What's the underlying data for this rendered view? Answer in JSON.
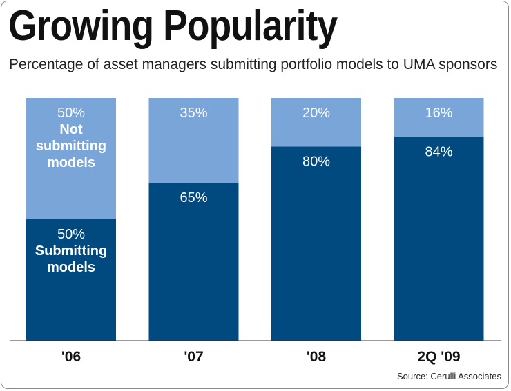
{
  "title": "Growing Popularity",
  "subtitle": "Percentage of asset managers submitting portfolio models to UMA sponsors",
  "source": "Source: Cerulli Associates",
  "colors": {
    "submitting": "#004a80",
    "not_submitting": "#7aa5d8",
    "axis": "#333333"
  },
  "chart_data": {
    "type": "bar",
    "stacked": true,
    "categories": [
      "'06",
      "'07",
      "'08",
      "2Q '09"
    ],
    "series": [
      {
        "name": "Submitting models",
        "label_lines": [
          "Submitting",
          "models"
        ],
        "values": [
          50,
          65,
          80,
          84
        ],
        "labels": [
          "50%",
          "65%",
          "80%",
          "84%"
        ]
      },
      {
        "name": "Not submitting models",
        "label_lines": [
          "Not",
          "submitting",
          "models"
        ],
        "values": [
          50,
          35,
          20,
          16
        ],
        "labels": [
          "50%",
          "35%",
          "20%",
          "16%"
        ]
      }
    ],
    "ylim": [
      0,
      100
    ],
    "title": "Growing Popularity",
    "xlabel": "",
    "ylabel": ""
  }
}
